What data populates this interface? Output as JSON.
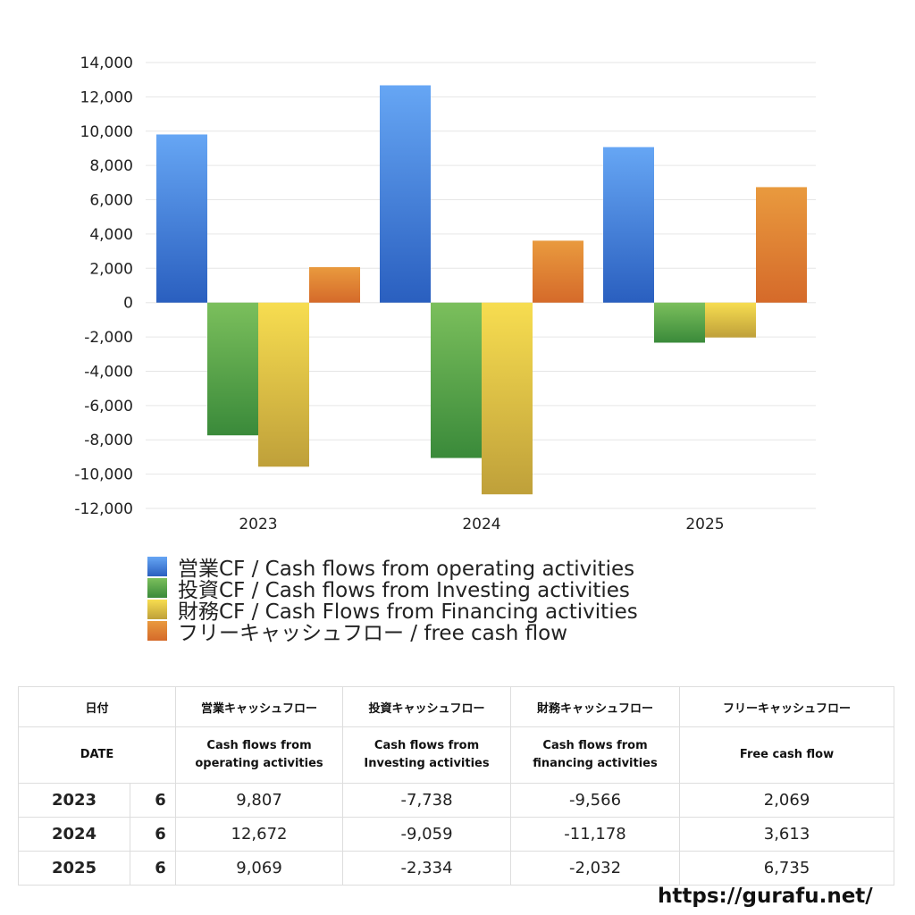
{
  "chart_data": {
    "type": "bar",
    "categories": [
      "2023",
      "2024",
      "2025"
    ],
    "ylim": [
      -12000,
      14000
    ],
    "yticks": [
      14000,
      12000,
      10000,
      8000,
      6000,
      4000,
      2000,
      0,
      -2000,
      -4000,
      -6000,
      -8000,
      -10000,
      -12000
    ],
    "ytick_labels": [
      "14,000",
      "12,000",
      "10,000",
      "8,000",
      "6,000",
      "4,000",
      "2,000",
      "0",
      "-2,000",
      "-4,000",
      "-6,000",
      "-8,000",
      "-10,000",
      "-12,000"
    ],
    "grid": true,
    "series": [
      {
        "name": "営業CF / Cash flows from operating activities",
        "values": [
          9807,
          12672,
          9069
        ],
        "color_top": "#66a6f4",
        "color_bottom": "#2a5fbf"
      },
      {
        "name": "投資CF / Cash flows from Investing activities",
        "values": [
          -7738,
          -9059,
          -2334
        ],
        "color_top": "#7bbf5c",
        "color_bottom": "#3a8a3a"
      },
      {
        "name": "財務CF / Cash Flows from Financing activities",
        "values": [
          -9566,
          -11178,
          -2032
        ],
        "color_top": "#f7dd50",
        "color_bottom": "#bfa03a"
      },
      {
        "name": "フリーキャッシュフロー / free cash flow",
        "values": [
          2069,
          3613,
          6735
        ],
        "color_top": "#e99a3e",
        "color_bottom": "#d56a2a"
      }
    ],
    "legend_position": "bottom-left"
  },
  "table": {
    "header_jp": {
      "date": "日付",
      "operating": "営業キャッシュフロー",
      "investing": "投資キャッシュフロー",
      "financing": "財務キャッシュフロー",
      "free": "フリーキャッシュフロー"
    },
    "header_en": {
      "date": "DATE",
      "operating": "Cash flows from operating activities",
      "investing": "Cash flows from Investing activities",
      "financing": "Cash flows from financing activities",
      "free": "Free cash flow"
    },
    "rows": [
      {
        "year": "2023",
        "month": "6",
        "operating": "9,807",
        "investing": "-7,738",
        "financing": "-9,566",
        "free": "2,069"
      },
      {
        "year": "2024",
        "month": "6",
        "operating": "12,672",
        "investing": "-9,059",
        "financing": "-11,178",
        "free": "3,613"
      },
      {
        "year": "2025",
        "month": "6",
        "operating": "9,069",
        "investing": "-2,334",
        "financing": "-2,032",
        "free": "6,735"
      }
    ]
  },
  "footer": {
    "site": "https://gurafu.net/"
  }
}
